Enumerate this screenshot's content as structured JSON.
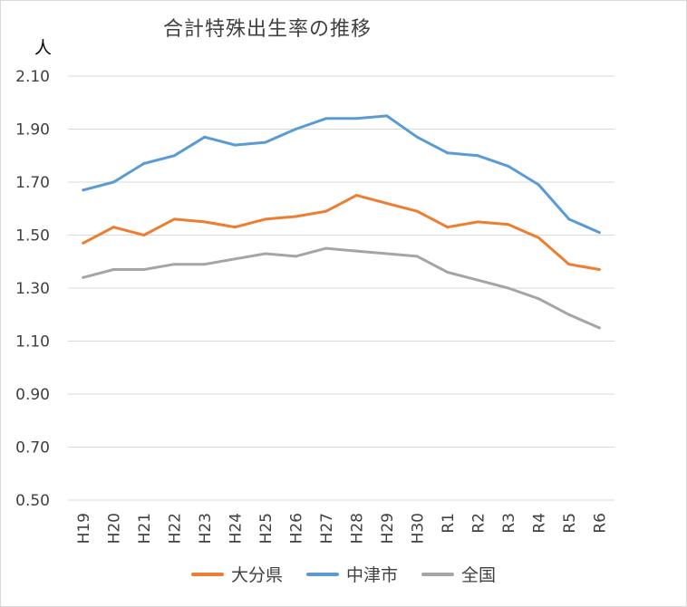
{
  "chart_data": {
    "type": "line",
    "title": "合計特殊出生率の推移",
    "ylabel": "人",
    "xlabel": "",
    "ylim": [
      0.5,
      2.1
    ],
    "yticks": [
      "2.10",
      "1.90",
      "1.70",
      "1.50",
      "1.30",
      "1.10",
      "0.90",
      "0.70",
      "0.50"
    ],
    "categories": [
      "H19",
      "H20",
      "H21",
      "H22",
      "H23",
      "H24",
      "H25",
      "H26",
      "H27",
      "H28",
      "H29",
      "H30",
      "R1",
      "R2",
      "R3",
      "R4",
      "R5",
      "R6"
    ],
    "series": [
      {
        "name": "大分県",
        "color": "#ed7d31",
        "values": [
          1.47,
          1.53,
          1.5,
          1.56,
          1.55,
          1.53,
          1.56,
          1.57,
          1.59,
          1.65,
          1.62,
          1.59,
          1.53,
          1.55,
          1.54,
          1.49,
          1.39,
          1.37
        ]
      },
      {
        "name": "中津市",
        "color": "#5b9bd5",
        "values": [
          1.67,
          1.7,
          1.77,
          1.8,
          1.87,
          1.84,
          1.85,
          1.9,
          1.94,
          1.94,
          1.95,
          1.87,
          1.81,
          1.8,
          1.76,
          1.69,
          1.56,
          1.51
        ]
      },
      {
        "name": "全国",
        "color": "#a5a5a5",
        "values": [
          1.34,
          1.37,
          1.37,
          1.39,
          1.39,
          1.41,
          1.43,
          1.42,
          1.45,
          1.44,
          1.43,
          1.42,
          1.36,
          1.33,
          1.3,
          1.26,
          1.2,
          1.15
        ]
      }
    ],
    "legend_position": "bottom",
    "grid": true
  }
}
